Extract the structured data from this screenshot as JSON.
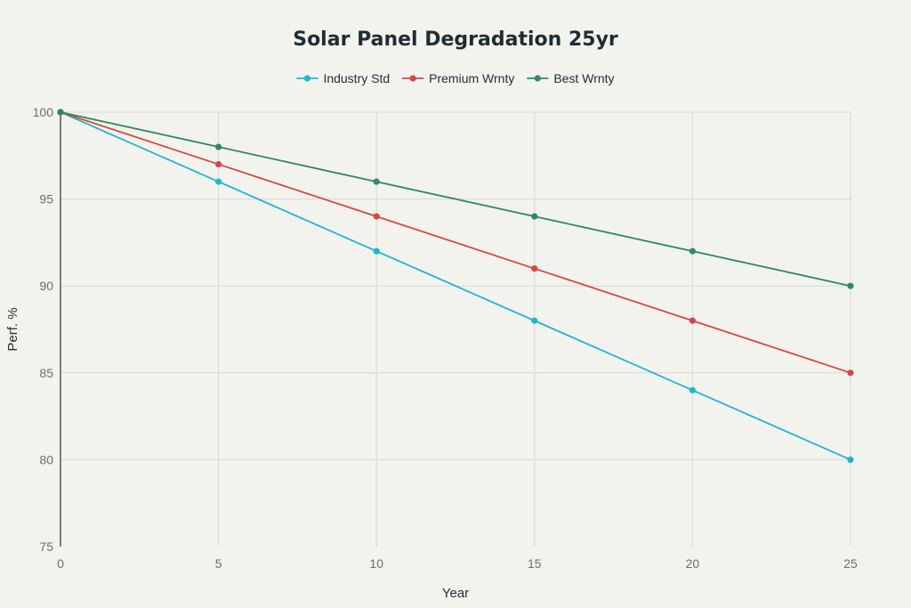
{
  "chart_data": {
    "type": "line",
    "title": "Solar Panel Degradation 25yr",
    "xlabel": "Year",
    "ylabel": "Perf. %",
    "x": [
      0,
      5,
      10,
      15,
      20,
      25
    ],
    "xlim": [
      0,
      25
    ],
    "ylim": [
      75,
      100
    ],
    "xticks": [
      0,
      5,
      10,
      15,
      20,
      25
    ],
    "yticks": [
      75,
      80,
      85,
      90,
      95,
      100
    ],
    "grid": true,
    "legend_position": "top-center",
    "series": [
      {
        "name": "Industry Std",
        "color": "#1fb5d0",
        "values": [
          100,
          96,
          92,
          88,
          84,
          80
        ]
      },
      {
        "name": "Premium Wrnty",
        "color": "#dc4444",
        "values": [
          100,
          97,
          94,
          91,
          88,
          85
        ]
      },
      {
        "name": "Best Wrnty",
        "color": "#2f8a5c",
        "values": [
          100,
          98,
          96,
          94,
          92,
          90
        ]
      }
    ]
  }
}
